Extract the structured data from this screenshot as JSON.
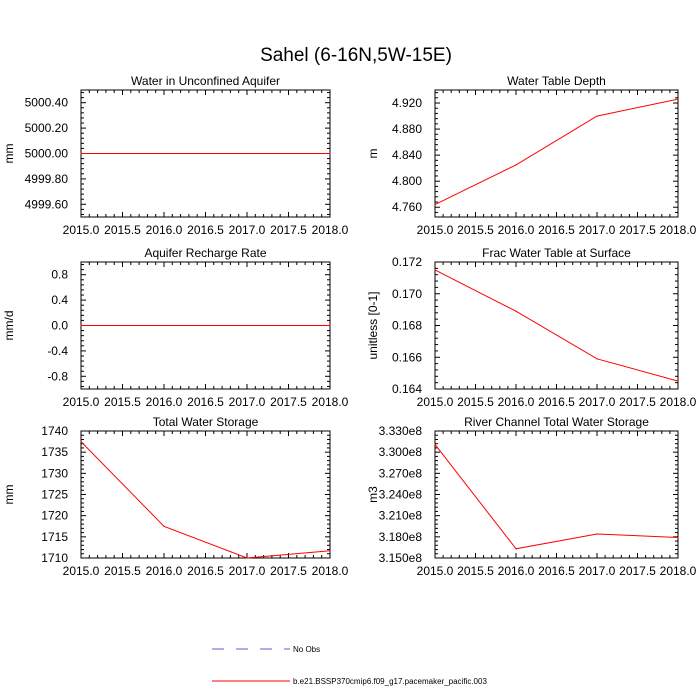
{
  "figure": {
    "title": "Sahel (6-16N,5W-15E)",
    "line_color": "#ff0000",
    "obs_color": "#6a5acd"
  },
  "legend": {
    "obs_label": "No Obs",
    "model_label": "b.e21.BSSP370cmip6.f09_g17.pacemaker_pacific.003"
  },
  "chart_data": [
    {
      "type": "line",
      "title": "Water in Unconfined Aquifer",
      "xlabel": "",
      "ylabel": "mm",
      "xlim": [
        2015.0,
        2018.0
      ],
      "ylim": [
        4999.5,
        5000.5
      ],
      "xticks": [
        "2015.0",
        "2015.5",
        "2016.0",
        "2016.5",
        "2017.0",
        "2017.5",
        "2018.0"
      ],
      "yticks": [
        4999.6,
        4999.8,
        5000.0,
        5000.2,
        5000.4
      ],
      "ytick_labels": [
        "4999.60",
        "4999.80",
        "5000.00",
        "5000.20",
        "5000.40"
      ],
      "x": [
        2015.0,
        2016.0,
        2017.0,
        2018.0
      ],
      "y": [
        5000.0,
        5000.0,
        5000.0,
        5000.0
      ]
    },
    {
      "type": "line",
      "title": "Water Table Depth",
      "xlabel": "",
      "ylabel": "m",
      "xlim": [
        2015.0,
        2018.0
      ],
      "ylim": [
        4.745,
        4.94
      ],
      "xticks": [
        "2015.0",
        "2015.5",
        "2016.0",
        "2016.5",
        "2017.0",
        "2017.5",
        "2018.0"
      ],
      "yticks": [
        4.76,
        4.8,
        4.84,
        4.88,
        4.92
      ],
      "ytick_labels": [
        "4.760",
        "4.800",
        "4.840",
        "4.880",
        "4.920"
      ],
      "x": [
        2015.0,
        2016.0,
        2017.0,
        2018.0
      ],
      "y": [
        4.764,
        4.825,
        4.9,
        4.926
      ]
    },
    {
      "type": "line",
      "title": "Aquifer Recharge Rate",
      "xlabel": "",
      "ylabel": "mm/d",
      "xlim": [
        2015.0,
        2018.0
      ],
      "ylim": [
        -1.0,
        1.0
      ],
      "xticks": [
        "2015.0",
        "2015.5",
        "2016.0",
        "2016.5",
        "2017.0",
        "2017.5",
        "2018.0"
      ],
      "yticks": [
        -0.8,
        -0.4,
        0.0,
        0.4,
        0.8
      ],
      "ytick_labels": [
        "-0.8",
        "-0.4",
        "0.0",
        "0.4",
        "0.8"
      ],
      "x": [
        2015.0,
        2016.0,
        2017.0,
        2018.0
      ],
      "y": [
        0.0,
        0.0,
        0.0,
        0.0
      ]
    },
    {
      "type": "line",
      "title": "Frac Water Table at Surface",
      "xlabel": "",
      "ylabel": "unitless [0-1]",
      "xlim": [
        2015.0,
        2018.0
      ],
      "ylim": [
        0.164,
        0.172
      ],
      "xticks": [
        "2015.0",
        "2015.5",
        "2016.0",
        "2016.5",
        "2017.0",
        "2017.5",
        "2018.0"
      ],
      "yticks": [
        0.164,
        0.166,
        0.168,
        0.17,
        0.172
      ],
      "ytick_labels": [
        "0.164",
        "0.166",
        "0.168",
        "0.170",
        "0.172"
      ],
      "x": [
        2015.0,
        2016.0,
        2017.0,
        2018.0
      ],
      "y": [
        0.1715,
        0.1689,
        0.1659,
        0.1645
      ]
    },
    {
      "type": "line",
      "title": "Total Water Storage",
      "xlabel": "",
      "ylabel": "mm",
      "xlim": [
        2015.0,
        2018.0
      ],
      "ylim": [
        1710,
        1740
      ],
      "xticks": [
        "2015.0",
        "2015.5",
        "2016.0",
        "2016.5",
        "2017.0",
        "2017.5",
        "2018.0"
      ],
      "yticks": [
        1710,
        1715,
        1720,
        1725,
        1730,
        1735,
        1740
      ],
      "ytick_labels": [
        "1710",
        "1715",
        "1720",
        "1725",
        "1730",
        "1735",
        "1740"
      ],
      "x": [
        2015.0,
        2016.0,
        2017.0,
        2018.0
      ],
      "y": [
        1737.5,
        1717.5,
        1710.0,
        1711.7
      ]
    },
    {
      "type": "line",
      "title": "River Channel Total Water Storage",
      "xlabel": "",
      "ylabel": "m3",
      "xlim": [
        2015.0,
        2018.0
      ],
      "ylim": [
        315000000.0,
        333000000.0
      ],
      "xticks": [
        "2015.0",
        "2015.5",
        "2016.0",
        "2016.5",
        "2017.0",
        "2017.5",
        "2018.0"
      ],
      "yticks": [
        315000000.0,
        318000000.0,
        321000000.0,
        324000000.0,
        327000000.0,
        330000000.0,
        333000000.0
      ],
      "ytick_labels": [
        "3.150e8",
        "3.180e8",
        "3.210e8",
        "3.240e8",
        "3.270e8",
        "3.300e8",
        "3.330e8"
      ],
      "x": [
        2015.0,
        2016.0,
        2017.0,
        2018.0
      ],
      "y": [
        331100000.0,
        316300000.0,
        318400000.0,
        317900000.0
      ]
    }
  ]
}
